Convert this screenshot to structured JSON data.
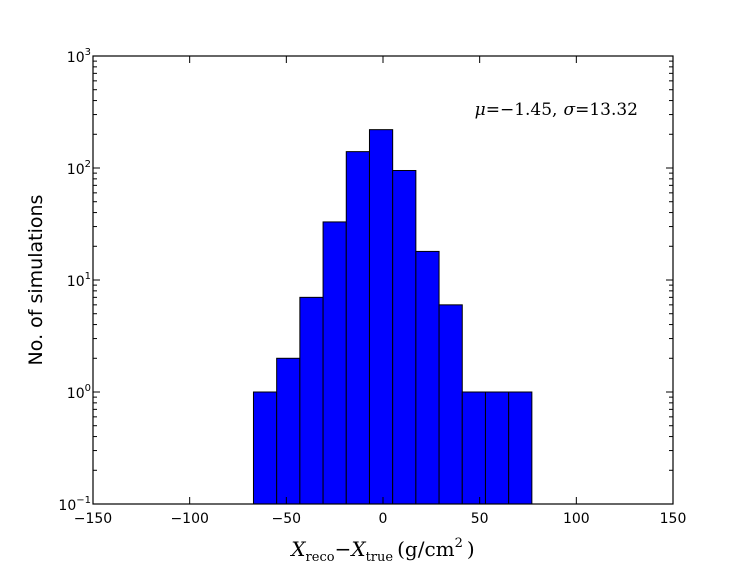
{
  "chart_data": {
    "type": "bar",
    "title": "",
    "xlabel": {
      "var": "X",
      "sub1": "reco",
      "minus": "−",
      "sub2": "true",
      "unit": "(g/cm",
      "unit_exp": "2",
      "unit_close": ")"
    },
    "ylabel": "No. of simulations",
    "xlim": [
      -150,
      150
    ],
    "ylim": [
      0.1,
      1000
    ],
    "y_scale": "log",
    "x_ticks": [
      -150,
      -100,
      -50,
      0,
      50,
      100,
      150
    ],
    "x_tick_labels": [
      "−150",
      "−100",
      "−50",
      "0",
      "50",
      "100",
      "150"
    ],
    "y_ticks": [
      {
        "value": 0.1,
        "base": "10",
        "exp": "−1"
      },
      {
        "value": 1,
        "base": "10",
        "exp": "0"
      },
      {
        "value": 10,
        "base": "10",
        "exp": "1"
      },
      {
        "value": 100,
        "base": "10",
        "exp": "2"
      },
      {
        "value": 1000,
        "base": "10",
        "exp": "3"
      }
    ],
    "bin_edges": [
      -67,
      -55,
      -43,
      -31,
      -19,
      -7,
      5,
      17,
      29,
      41,
      53,
      65,
      77
    ],
    "counts": [
      1,
      2,
      7,
      33,
      140,
      220,
      95,
      18,
      6,
      1,
      1,
      1
    ],
    "bar_color": "#0000ff",
    "edge_color": "#000000",
    "grid": false,
    "annotation": {
      "mu_symbol": "μ",
      "mu_eq": "=−1.45,",
      "sigma_symbol": "σ",
      "sigma_eq": "=13.32",
      "placement": "top-right"
    }
  }
}
